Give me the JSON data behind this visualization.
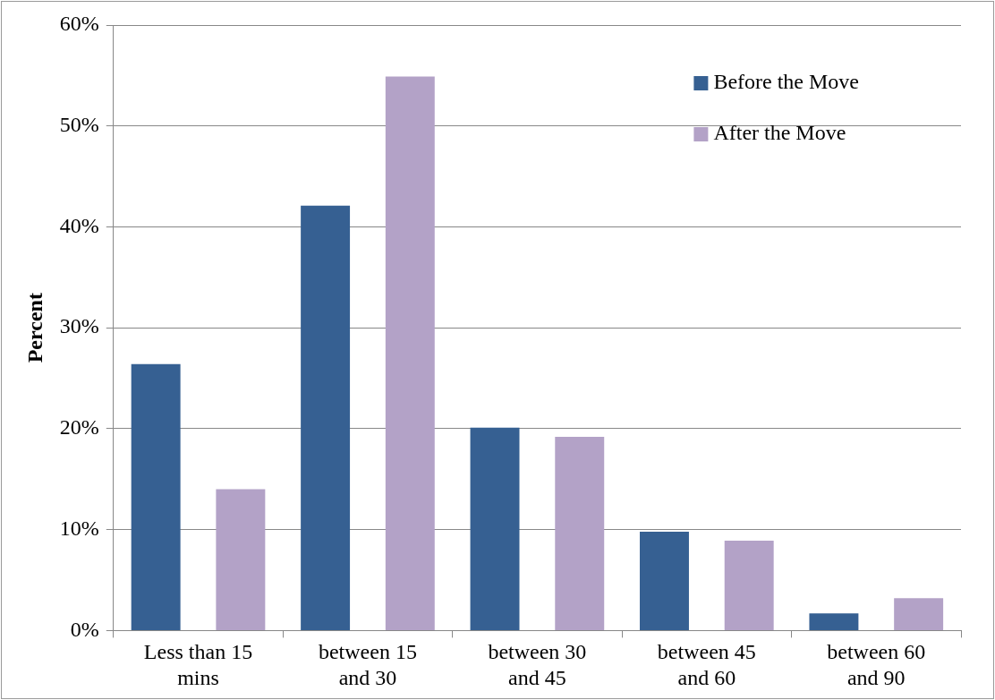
{
  "chart_data": {
    "type": "bar",
    "ylabel": "Percent",
    "categories": [
      "Less than 15 mins",
      "between 15 and 30",
      "between 30 and 45",
      "between 45 and 60",
      "between 60 and 90"
    ],
    "series": [
      {
        "name": "Before the Move",
        "color": "#366092",
        "values": [
          26.4,
          42.1,
          20.1,
          9.8,
          1.7
        ]
      },
      {
        "name": "After the Move",
        "color": "#b3a2c7",
        "values": [
          14,
          54.9,
          19.2,
          8.9,
          3.2
        ]
      }
    ],
    "ylim": [
      0,
      60
    ],
    "yticks": [
      {
        "value": 0,
        "label": "0%"
      },
      {
        "value": 10,
        "label": "10%"
      },
      {
        "value": 20,
        "label": "20%"
      },
      {
        "value": 30,
        "label": "30%"
      },
      {
        "value": 40,
        "label": "40%"
      },
      {
        "value": 50,
        "label": "50%"
      },
      {
        "value": 60,
        "label": "60%"
      }
    ],
    "grid": "y",
    "legend": "top right"
  }
}
